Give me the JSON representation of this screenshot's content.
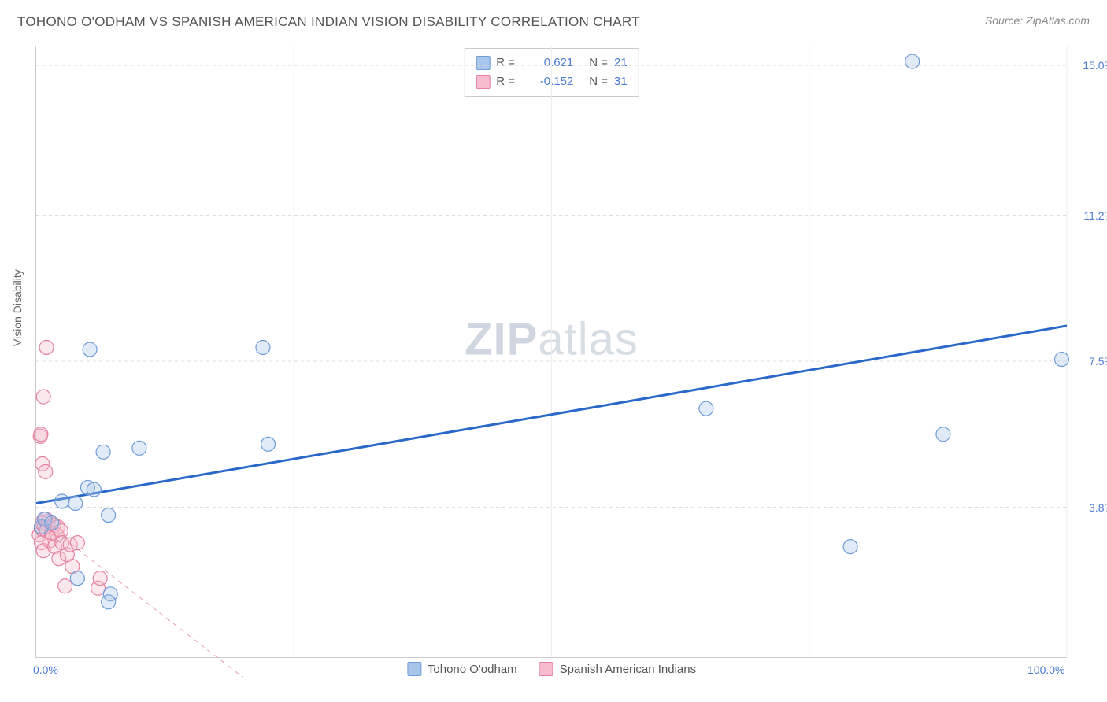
{
  "header": {
    "title": "TOHONO O'ODHAM VS SPANISH AMERICAN INDIAN VISION DISABILITY CORRELATION CHART",
    "source": "Source: ZipAtlas.com"
  },
  "ylabel": "Vision Disability",
  "watermark": {
    "zip": "ZIP",
    "rest": "atlas"
  },
  "chart": {
    "type": "scatter",
    "xlim": [
      0,
      100
    ],
    "ylim": [
      0,
      15.5
    ],
    "x_ticks": [
      {
        "value": 0,
        "label": "0.0%"
      },
      {
        "value": 100,
        "label": "100.0%"
      }
    ],
    "y_ticks": [
      {
        "value": 3.8,
        "label": "3.8%"
      },
      {
        "value": 7.5,
        "label": "7.5%"
      },
      {
        "value": 11.2,
        "label": "11.2%"
      },
      {
        "value": 15.0,
        "label": "15.0%"
      }
    ],
    "x_gridlines": [
      25,
      50,
      75,
      100
    ],
    "background_color": "#ffffff",
    "grid_color": "#dddddd",
    "marker_radius": 9,
    "marker_fill_opacity": 0.35,
    "marker_stroke_width": 1.2,
    "trend_line_width_solid": 3,
    "trend_line_width_dashed": 1
  },
  "series": [
    {
      "name": "Tohono O'odham",
      "color_fill": "#a8c5ec",
      "color_stroke": "#6f9bd8",
      "r_value": "0.621",
      "n_value": "21",
      "trend": {
        "x1": 0,
        "y1": 3.9,
        "x2": 100,
        "y2": 8.4,
        "dashed": false,
        "color": "#2a68c9"
      },
      "points": [
        {
          "x": 0.5,
          "y": 3.3
        },
        {
          "x": 0.8,
          "y": 3.5
        },
        {
          "x": 1.5,
          "y": 3.4
        },
        {
          "x": 2.5,
          "y": 3.95
        },
        {
          "x": 3.8,
          "y": 3.9
        },
        {
          "x": 5.0,
          "y": 4.3
        },
        {
          "x": 5.6,
          "y": 4.25
        },
        {
          "x": 5.2,
          "y": 7.8
        },
        {
          "x": 6.5,
          "y": 5.2
        },
        {
          "x": 10.0,
          "y": 5.3
        },
        {
          "x": 7.0,
          "y": 3.6
        },
        {
          "x": 7.2,
          "y": 1.6
        },
        {
          "x": 7.0,
          "y": 1.4
        },
        {
          "x": 4.0,
          "y": 2.0
        },
        {
          "x": 22.5,
          "y": 5.4
        },
        {
          "x": 22.0,
          "y": 7.85
        },
        {
          "x": 65.0,
          "y": 6.3
        },
        {
          "x": 79.0,
          "y": 2.8
        },
        {
          "x": 85.0,
          "y": 15.1
        },
        {
          "x": 88.0,
          "y": 5.65
        },
        {
          "x": 99.5,
          "y": 7.55
        }
      ]
    },
    {
      "name": "Spanish American Indians",
      "color_fill": "#f4bccc",
      "color_stroke": "#e382a0",
      "r_value": "-0.152",
      "n_value": "31",
      "trend": {
        "x1": 0,
        "y1": 3.55,
        "x2": 20,
        "y2": -0.5,
        "dashed": true,
        "color": "#e79fb3"
      },
      "points": [
        {
          "x": 0.3,
          "y": 3.1
        },
        {
          "x": 0.5,
          "y": 3.25
        },
        {
          "x": 0.6,
          "y": 3.4
        },
        {
          "x": 0.8,
          "y": 3.3
        },
        {
          "x": 0.9,
          "y": 3.5
        },
        {
          "x": 1.0,
          "y": 3.2
        },
        {
          "x": 1.2,
          "y": 3.45
        },
        {
          "x": 0.5,
          "y": 2.9
        },
        {
          "x": 0.7,
          "y": 2.7
        },
        {
          "x": 1.3,
          "y": 2.95
        },
        {
          "x": 1.5,
          "y": 3.15
        },
        {
          "x": 1.7,
          "y": 3.35
        },
        {
          "x": 1.8,
          "y": 2.8
        },
        {
          "x": 2.0,
          "y": 3.1
        },
        {
          "x": 2.1,
          "y": 3.3
        },
        {
          "x": 2.2,
          "y": 2.5
        },
        {
          "x": 2.4,
          "y": 3.2
        },
        {
          "x": 2.5,
          "y": 2.9
        },
        {
          "x": 3.0,
          "y": 2.6
        },
        {
          "x": 3.3,
          "y": 2.85
        },
        {
          "x": 3.5,
          "y": 2.3
        },
        {
          "x": 0.4,
          "y": 5.6
        },
        {
          "x": 0.45,
          "y": 5.65
        },
        {
          "x": 0.6,
          "y": 4.9
        },
        {
          "x": 0.7,
          "y": 6.6
        },
        {
          "x": 1.0,
          "y": 7.85
        },
        {
          "x": 0.9,
          "y": 4.7
        },
        {
          "x": 4.0,
          "y": 2.9
        },
        {
          "x": 2.8,
          "y": 1.8
        },
        {
          "x": 6.0,
          "y": 1.75
        },
        {
          "x": 6.2,
          "y": 2.0
        }
      ]
    }
  ],
  "legend_top_labels": {
    "r": "R =",
    "n": "N ="
  }
}
